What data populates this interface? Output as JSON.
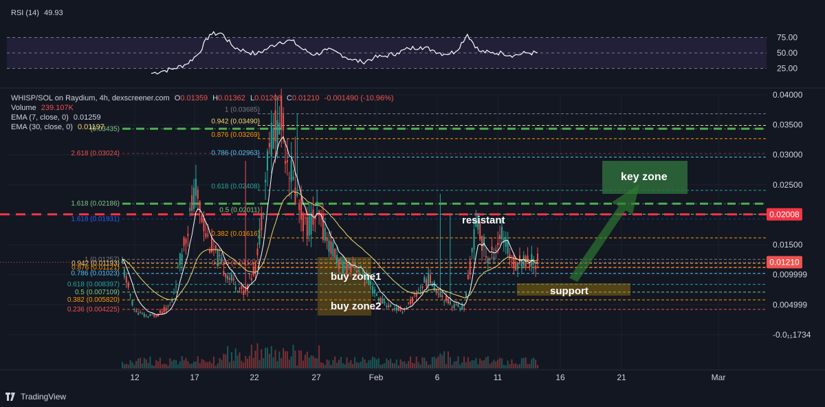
{
  "rsi": {
    "label": "RSI (14)",
    "value": "49.93",
    "levels": [
      75,
      50,
      25
    ],
    "level_labels": [
      "75.00",
      "50.00",
      "25.00"
    ]
  },
  "header": {
    "symbol": "WHISP/SOL on Raydium, 4h, dexscreener.com",
    "o_label": "O",
    "o_value": "0.01359",
    "h_label": "H",
    "h_value": "0.01362",
    "l_label": "L",
    "l_value": "0.01208",
    "c_label": "C",
    "c_value": "0.01210",
    "change": "-0.001490 (-10.96%)",
    "volume_label": "Volume",
    "volume_value": "239.107K",
    "ema7_label": "EMA (7, close, 0)",
    "ema7_value": "0.01259",
    "ema30_label": "EMA (30, close, 0)",
    "ema30_value": "0.01197"
  },
  "price_axis": {
    "ticks": [
      "0.04000",
      "0.03500",
      "0.03000",
      "0.02500",
      "0.02000",
      "0.01500",
      "0.009999",
      "0.004999",
      "-0.0₁₁1734"
    ],
    "tick_values": [
      0.04,
      0.035,
      0.03,
      0.025,
      0.02,
      0.015,
      0.01,
      0.005,
      0.0
    ],
    "current_price": "0.01210",
    "red_line_price": "0.02008"
  },
  "time_axis": {
    "labels": [
      "12",
      "17",
      "22",
      "27",
      "Feb",
      "6",
      "11",
      "16",
      "21",
      "Mar"
    ]
  },
  "fib_upper": [
    {
      "label": "1 (0.03685)",
      "price": 0.03685,
      "color": "#787b86"
    },
    {
      "label": "0.942 (0.03490)",
      "price": 0.0349,
      "color": "#f7d774"
    },
    {
      "label": "0.876 (0.03269)",
      "price": 0.03269,
      "color": "#ff9800"
    },
    {
      "label": "0.786 (0.02963)",
      "price": 0.02963,
      "color": "#4fc3f7"
    },
    {
      "label": "0.618 (0.02408)",
      "price": 0.02408,
      "color": "#26a69a"
    },
    {
      "label": "0.5 (0.02011)",
      "price": 0.02011,
      "color": "#81c784"
    },
    {
      "label": "0.382 (0.01616)",
      "price": 0.01616,
      "color": "#ff9800"
    },
    {
      "label": "0.236 (0.01127)",
      "price": 0.01127,
      "color": "#ef5350"
    }
  ],
  "fib_lower": [
    {
      "label": "1 (0.01257)",
      "price": 0.01257,
      "color": "#787b86"
    },
    {
      "label": "0.942 (0.01193)",
      "price": 0.01193,
      "color": "#f7d774"
    },
    {
      "label": "0.876 (0.01121)",
      "price": 0.01121,
      "color": "#ff9800"
    },
    {
      "label": "0.786 (0.01023)",
      "price": 0.01023,
      "color": "#4fc3f7"
    },
    {
      "label": "0.618 (0.008397)",
      "price": 0.008397,
      "color": "#26a69a"
    },
    {
      "label": "0.5 (0.007109)",
      "price": 0.007109,
      "color": "#81c784"
    },
    {
      "label": "0.382 (0.005820)",
      "price": 0.00582,
      "color": "#ff9800"
    },
    {
      "label": "0.236 (0.004225)",
      "price": 0.004225,
      "color": "#ef5350"
    }
  ],
  "fib_ext": [
    {
      "label": "2.618 (0.03024)",
      "price": 0.03024,
      "color": "#ef5350"
    },
    {
      "label": "1.618 (0.02186)",
      "price": 0.02186,
      "color": "#81c784"
    },
    {
      "label": "1.618 (0.01931)",
      "price": 0.01931,
      "color": "#2962ff"
    },
    {
      "label": "(0.03435)",
      "price": 0.03435,
      "color": "#81c784"
    }
  ],
  "annotations": {
    "buy_zone1": "buy zone1",
    "buy_zone2": "buy zone2",
    "resistant": "resistant",
    "support": "support",
    "key_zone": "key zone"
  },
  "footer": {
    "brand": "TradingView"
  },
  "colors": {
    "background": "#131722",
    "up": "#26a69a",
    "down": "#ef5350",
    "ema7": "#ffffff",
    "ema30": "#f7d774",
    "green_dash": "#4caf50",
    "red_dash": "#f23645",
    "rsi_line": "#ffffff",
    "rsi_band": "#2a2343"
  },
  "chart_data": {
    "type": "candlestick",
    "title": "WHISP/SOL on Raydium, 4h, dexscreener.com",
    "y_range": [
      -0.00173,
      0.04
    ],
    "x_labels": [
      "12",
      "17",
      "22",
      "27",
      "Feb",
      "6",
      "11",
      "16",
      "21",
      "Mar"
    ],
    "price_path": {
      "note_points_date_index": [
        0,
        1,
        2,
        3,
        4,
        5,
        6,
        7,
        8,
        9,
        10,
        11,
        12,
        13,
        14,
        15,
        16,
        17,
        18,
        19,
        20,
        21,
        22,
        23,
        24,
        25,
        26,
        27,
        28,
        29,
        30,
        31,
        32,
        33,
        34
      ],
      "close": [
        0.0115,
        0.004,
        0.003,
        0.0035,
        0.005,
        0.015,
        0.024,
        0.016,
        0.012,
        0.009,
        0.007,
        0.012,
        0.032,
        0.036,
        0.025,
        0.018,
        0.02,
        0.015,
        0.011,
        0.012,
        0.009,
        0.006,
        0.0045,
        0.004,
        0.0065,
        0.0095,
        0.007,
        0.005,
        0.0045,
        0.019,
        0.012,
        0.017,
        0.012,
        0.0125,
        0.0121
      ]
    },
    "rsi_series": [
      17,
      21,
      25,
      32,
      48,
      80,
      82,
      60,
      53,
      48,
      58,
      68,
      70,
      55,
      47,
      55,
      50,
      40,
      35,
      42,
      45,
      50,
      57,
      60,
      55,
      48,
      52,
      80,
      53,
      50,
      50,
      46,
      50,
      49.93
    ]
  }
}
